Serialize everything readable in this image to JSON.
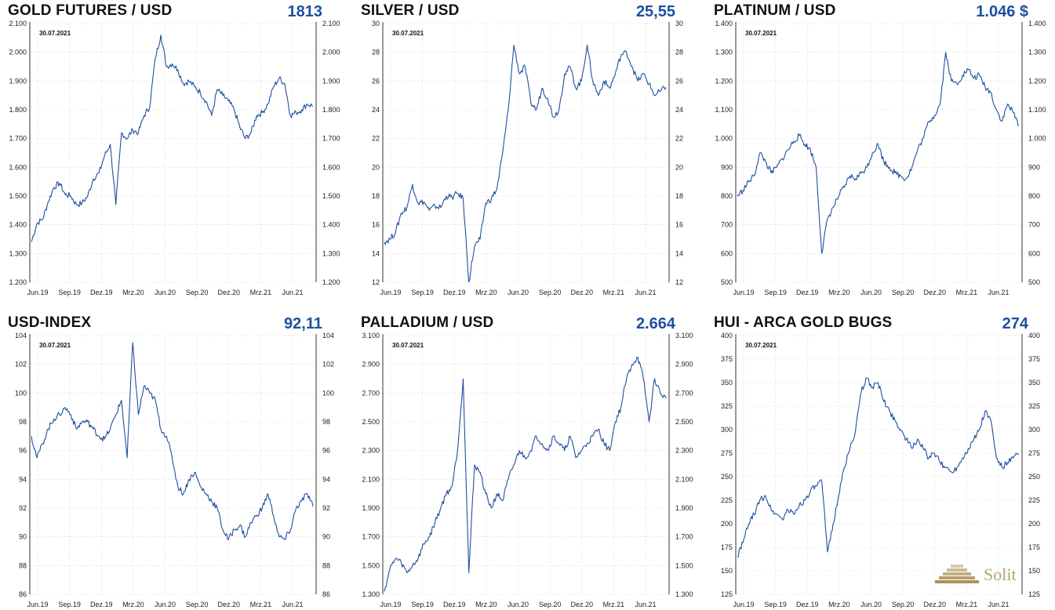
{
  "colors": {
    "line": "#1f4fa0",
    "value": "#1f4fa0",
    "axis": "#333333",
    "grid": "#dddddd"
  },
  "logo": {
    "text": "Solit",
    "icon": "pyramid-logo-icon"
  },
  "chart_data": [
    {
      "type": "line",
      "title": "GOLD FUTURES / USD",
      "value_label": "1813",
      "date_label": "30.07.2021",
      "x_ticks": [
        "Jun.19",
        "Sep.19",
        "Dez.19",
        "Mrz.20",
        "Jun.20",
        "Sep.20",
        "Dez.20",
        "Mrz.21",
        "Jun.21"
      ],
      "y_ticks": [
        "1.200",
        "1.300",
        "1.400",
        "1.500",
        "1.600",
        "1.700",
        "1.800",
        "1.900",
        "2.000",
        "2.100"
      ],
      "ylim": [
        1200,
        2100
      ],
      "grid": true,
      "series": [
        {
          "values": [
            1340,
            1405,
            1420,
            1480,
            1530,
            1545,
            1505,
            1500,
            1470,
            1475,
            1500,
            1560,
            1580,
            1640,
            1680,
            1470,
            1720,
            1700,
            1730,
            1720,
            1780,
            1810,
            1980,
            2060,
            1950,
            1960,
            1940,
            1890,
            1900,
            1880,
            1860,
            1830,
            1780,
            1870,
            1850,
            1830,
            1800,
            1740,
            1700,
            1720,
            1780,
            1790,
            1820,
            1880,
            1910,
            1890,
            1780,
            1790,
            1800,
            1820,
            1813
          ]
        }
      ]
    },
    {
      "type": "line",
      "title": "SILVER / USD",
      "value_label": "25,55",
      "date_label": "30.07.2021",
      "x_ticks": [
        "Jun.19",
        "Sep.19",
        "Dez.19",
        "Mrz.20",
        "Jun.20",
        "Sep.20",
        "Dez.20",
        "Mrz.21",
        "Jun.21"
      ],
      "y_ticks": [
        "12",
        "14",
        "16",
        "18",
        "20",
        "22",
        "24",
        "26",
        "28",
        "30"
      ],
      "ylim": [
        12,
        30
      ],
      "grid": true,
      "series": [
        {
          "values": [
            14.8,
            15.0,
            15.5,
            16.8,
            17.2,
            18.8,
            17.5,
            17.6,
            17.0,
            17.3,
            17.2,
            18.0,
            17.9,
            18.2,
            17.8,
            12.0,
            14.5,
            15.0,
            17.5,
            17.8,
            18.5,
            21.0,
            24.0,
            28.5,
            26.5,
            27.0,
            24.5,
            24.0,
            25.5,
            24.8,
            23.5,
            24.0,
            26.5,
            27.0,
            25.5,
            26.0,
            28.5,
            26.0,
            25.0,
            26.0,
            25.5,
            26.5,
            27.8,
            28.0,
            27.0,
            26.0,
            26.5,
            25.8,
            25.0,
            25.3,
            25.55
          ]
        }
      ]
    },
    {
      "type": "line",
      "title": "PLATINUM / USD",
      "value_label": "1.046 $",
      "date_label": "30.07.2021",
      "x_ticks": [
        "Jun.19",
        "Sep.19",
        "Dez.19",
        "Mrz.20",
        "Jun.20",
        "Sep.20",
        "Dez.20",
        "Mrz.21",
        "Jun.21"
      ],
      "y_ticks": [
        "500",
        "600",
        "700",
        "800",
        "900",
        "1.000",
        "1.100",
        "1.200",
        "1.300",
        "1.400"
      ],
      "ylim": [
        500,
        1400
      ],
      "grid": true,
      "series": [
        {
          "values": [
            800,
            820,
            850,
            870,
            950,
            920,
            880,
            900,
            930,
            960,
            990,
            1010,
            980,
            960,
            900,
            600,
            720,
            760,
            800,
            830,
            870,
            860,
            880,
            900,
            950,
            980,
            920,
            900,
            880,
            870,
            860,
            900,
            960,
            1000,
            1060,
            1080,
            1120,
            1300,
            1200,
            1190,
            1220,
            1240,
            1210,
            1220,
            1180,
            1160,
            1100,
            1060,
            1120,
            1090,
            1046
          ]
        }
      ]
    },
    {
      "type": "line",
      "title": "USD-INDEX",
      "value_label": "92,11",
      "date_label": "30.07.2021",
      "x_ticks": [
        "Jun.19",
        "Sep.19",
        "Dez.19",
        "Mrz.20",
        "Jun.20",
        "Sep.20",
        "Dez.20",
        "Mrz.21",
        "Jun.21"
      ],
      "y_ticks": [
        "86",
        "88",
        "90",
        "92",
        "94",
        "96",
        "98",
        "100",
        "102",
        "104"
      ],
      "ylim": [
        86,
        104
      ],
      "grid": true,
      "series": [
        {
          "values": [
            97.0,
            95.5,
            96.5,
            97.5,
            98.2,
            98.5,
            99.0,
            98.5,
            97.5,
            98.0,
            98.0,
            97.5,
            97.0,
            96.8,
            97.5,
            98.5,
            99.5,
            95.5,
            103.5,
            98.5,
            100.5,
            100.0,
            99.5,
            97.5,
            97.0,
            95.5,
            93.5,
            93.0,
            94.0,
            94.5,
            93.5,
            93.0,
            92.5,
            92.0,
            90.5,
            89.8,
            90.5,
            90.8,
            90.0,
            91.0,
            91.5,
            92.0,
            93.0,
            91.5,
            90.0,
            89.8,
            90.5,
            92.0,
            92.5,
            93.0,
            92.11
          ]
        }
      ]
    },
    {
      "type": "line",
      "title": "PALLADIUM / USD",
      "value_label": "2.664",
      "date_label": "30.07.2021",
      "x_ticks": [
        "Jun.19",
        "Sep.19",
        "Dez.19",
        "Mrz.20",
        "Jun.20",
        "Sep.20",
        "Dez.20",
        "Mrz.21",
        "Jun.21"
      ],
      "y_ticks": [
        "1.300",
        "1.500",
        "1.700",
        "1.900",
        "2.100",
        "2.300",
        "2.500",
        "2.700",
        "2.900",
        "3.100"
      ],
      "ylim": [
        1300,
        3100
      ],
      "grid": true,
      "series": [
        {
          "values": [
            1320,
            1480,
            1550,
            1520,
            1450,
            1500,
            1550,
            1650,
            1700,
            1800,
            1900,
            2000,
            2050,
            2300,
            2800,
            1450,
            2200,
            2150,
            2000,
            1900,
            2000,
            1950,
            2100,
            2200,
            2300,
            2250,
            2300,
            2400,
            2350,
            2300,
            2400,
            2350,
            2300,
            2400,
            2250,
            2300,
            2350,
            2400,
            2450,
            2350,
            2300,
            2500,
            2600,
            2800,
            2900,
            2950,
            2800,
            2500,
            2800,
            2700,
            2664
          ]
        }
      ]
    },
    {
      "type": "line",
      "title": "HUI - ARCA GOLD BUGS",
      "value_label": "274",
      "date_label": "30.07.2021",
      "x_ticks": [
        "Jun.19",
        "Sep.19",
        "Dez.19",
        "Mrz.20",
        "Jun.20",
        "Sep.20",
        "Dez.20",
        "Mrz.21",
        "Jun.21"
      ],
      "y_ticks": [
        "125",
        "150",
        "175",
        "200",
        "225",
        "250",
        "275",
        "300",
        "325",
        "350",
        "375",
        "400"
      ],
      "ylim": [
        125,
        400
      ],
      "grid": true,
      "series": [
        {
          "values": [
            165,
            180,
            200,
            210,
            225,
            230,
            215,
            210,
            205,
            215,
            210,
            220,
            225,
            235,
            240,
            245,
            170,
            200,
            230,
            260,
            280,
            300,
            340,
            355,
            345,
            350,
            330,
            320,
            310,
            300,
            290,
            280,
            290,
            280,
            270,
            275,
            265,
            260,
            255,
            260,
            270,
            280,
            290,
            300,
            320,
            310,
            270,
            260,
            265,
            270,
            274
          ]
        }
      ]
    }
  ]
}
